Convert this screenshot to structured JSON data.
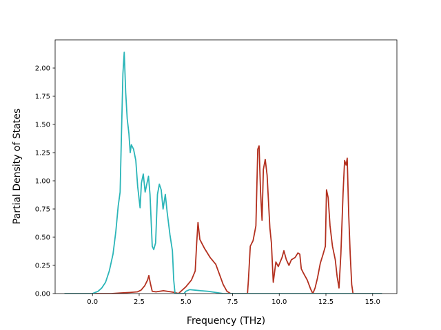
{
  "chart_data": {
    "type": "line",
    "title": "",
    "xlabel": "Frequency (THz)",
    "ylabel": "Partial Density of States",
    "xlim": [
      -2.0,
      16.3
    ],
    "ylim": [
      0,
      2.25
    ],
    "xticks": [
      0.0,
      2.5,
      5.0,
      7.5,
      10.0,
      12.5,
      15.0
    ],
    "xtick_labels": [
      "0.0",
      "2.5",
      "5.0",
      "7.5",
      "10.0",
      "12.5",
      "15.0"
    ],
    "yticks": [
      0.0,
      0.25,
      0.5,
      0.75,
      1.0,
      1.25,
      1.5,
      1.75,
      2.0
    ],
    "ytick_labels": [
      "0.00",
      "0.25",
      "0.50",
      "0.75",
      "1.00",
      "1.25",
      "1.50",
      "1.75",
      "2.00"
    ],
    "grid": false,
    "legend": "none",
    "series": [
      {
        "color": "#b3301f",
        "points": [
          [
            -1.5,
            0
          ],
          [
            1.0,
            0
          ],
          [
            1.5,
            0.005
          ],
          [
            2.0,
            0.01
          ],
          [
            2.4,
            0.015
          ],
          [
            2.6,
            0.03
          ],
          [
            2.8,
            0.07
          ],
          [
            2.95,
            0.12
          ],
          [
            3.02,
            0.16
          ],
          [
            3.1,
            0.09
          ],
          [
            3.2,
            0.02
          ],
          [
            3.4,
            0.015
          ],
          [
            3.8,
            0.025
          ],
          [
            4.2,
            0.015
          ],
          [
            4.4,
            0.01
          ],
          [
            4.6,
            0.0
          ],
          [
            5.0,
            0.06
          ],
          [
            5.3,
            0.12
          ],
          [
            5.5,
            0.2
          ],
          [
            5.58,
            0.45
          ],
          [
            5.65,
            0.63
          ],
          [
            5.75,
            0.48
          ],
          [
            6.0,
            0.4
          ],
          [
            6.3,
            0.32
          ],
          [
            6.6,
            0.26
          ],
          [
            6.8,
            0.17
          ],
          [
            7.0,
            0.08
          ],
          [
            7.2,
            0.02
          ],
          [
            7.4,
            0.0
          ],
          [
            8.3,
            0.0
          ],
          [
            8.35,
            0.12
          ],
          [
            8.45,
            0.42
          ],
          [
            8.6,
            0.47
          ],
          [
            8.75,
            0.6
          ],
          [
            8.85,
            1.28
          ],
          [
            8.92,
            1.31
          ],
          [
            9.0,
            0.9
          ],
          [
            9.08,
            0.65
          ],
          [
            9.15,
            1.1
          ],
          [
            9.25,
            1.19
          ],
          [
            9.35,
            1.05
          ],
          [
            9.5,
            0.58
          ],
          [
            9.58,
            0.45
          ],
          [
            9.68,
            0.1
          ],
          [
            9.82,
            0.28
          ],
          [
            9.95,
            0.24
          ],
          [
            10.15,
            0.32
          ],
          [
            10.25,
            0.38
          ],
          [
            10.38,
            0.3
          ],
          [
            10.52,
            0.25
          ],
          [
            10.65,
            0.3
          ],
          [
            10.85,
            0.32
          ],
          [
            11.0,
            0.36
          ],
          [
            11.1,
            0.35
          ],
          [
            11.18,
            0.22
          ],
          [
            11.3,
            0.18
          ],
          [
            11.5,
            0.12
          ],
          [
            11.68,
            0.04
          ],
          [
            11.8,
            0.0
          ],
          [
            11.92,
            0.05
          ],
          [
            12.05,
            0.14
          ],
          [
            12.2,
            0.27
          ],
          [
            12.35,
            0.35
          ],
          [
            12.47,
            0.42
          ],
          [
            12.53,
            0.92
          ],
          [
            12.62,
            0.85
          ],
          [
            12.72,
            0.6
          ],
          [
            12.85,
            0.42
          ],
          [
            13.0,
            0.3
          ],
          [
            13.1,
            0.15
          ],
          [
            13.2,
            0.05
          ],
          [
            13.3,
            0.35
          ],
          [
            13.42,
            0.9
          ],
          [
            13.5,
            1.18
          ],
          [
            13.58,
            1.14
          ],
          [
            13.64,
            1.2
          ],
          [
            13.72,
            0.7
          ],
          [
            13.8,
            0.35
          ],
          [
            13.88,
            0.08
          ],
          [
            13.95,
            0.0
          ],
          [
            15.5,
            0
          ]
        ]
      },
      {
        "color": "#2bb5b8",
        "points": [
          [
            -1.5,
            0
          ],
          [
            0.0,
            0
          ],
          [
            0.3,
            0.02
          ],
          [
            0.5,
            0.05
          ],
          [
            0.7,
            0.1
          ],
          [
            0.9,
            0.2
          ],
          [
            1.1,
            0.35
          ],
          [
            1.25,
            0.55
          ],
          [
            1.38,
            0.78
          ],
          [
            1.48,
            0.9
          ],
          [
            1.55,
            1.4
          ],
          [
            1.63,
            1.95
          ],
          [
            1.7,
            2.14
          ],
          [
            1.78,
            1.78
          ],
          [
            1.86,
            1.55
          ],
          [
            1.95,
            1.42
          ],
          [
            2.02,
            1.25
          ],
          [
            2.08,
            1.32
          ],
          [
            2.2,
            1.28
          ],
          [
            2.32,
            1.18
          ],
          [
            2.42,
            0.95
          ],
          [
            2.55,
            0.76
          ],
          [
            2.62,
            0.98
          ],
          [
            2.72,
            1.06
          ],
          [
            2.82,
            0.9
          ],
          [
            2.92,
            0.98
          ],
          [
            3.0,
            1.04
          ],
          [
            3.08,
            0.88
          ],
          [
            3.2,
            0.42
          ],
          [
            3.28,
            0.39
          ],
          [
            3.38,
            0.45
          ],
          [
            3.48,
            0.88
          ],
          [
            3.58,
            0.97
          ],
          [
            3.68,
            0.92
          ],
          [
            3.78,
            0.75
          ],
          [
            3.9,
            0.88
          ],
          [
            4.0,
            0.72
          ],
          [
            4.15,
            0.52
          ],
          [
            4.28,
            0.38
          ],
          [
            4.35,
            0.12
          ],
          [
            4.42,
            0.0
          ],
          [
            4.9,
            0.0
          ],
          [
            5.0,
            0.02
          ],
          [
            5.2,
            0.035
          ],
          [
            5.5,
            0.03
          ],
          [
            5.8,
            0.025
          ],
          [
            6.2,
            0.02
          ],
          [
            6.6,
            0.01
          ],
          [
            7.0,
            0.0
          ],
          [
            15.5,
            0
          ]
        ]
      }
    ]
  }
}
